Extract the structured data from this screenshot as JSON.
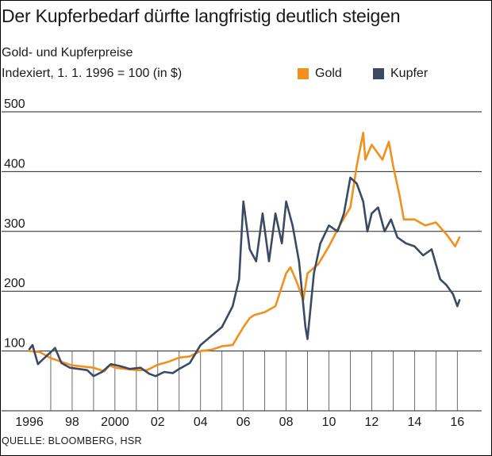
{
  "header": {
    "title": "Der Kupferbedarf dürfte langfristig deutlich steigen",
    "subtitle": "Gold- und Kupferpreise",
    "unit": "Indexiert, 1. 1. 1996 = 100 (in $)"
  },
  "source": "QUELLE: BLOOMBERG, HSR",
  "colors": {
    "gold": "#f2901e",
    "kupfer": "#3b4a63"
  },
  "chart_data": {
    "type": "line",
    "title": "Gold- und Kupferpreise",
    "ylabel": "Indexiert, 1. 1. 1996 = 100 (in $)",
    "xlabel": "",
    "ylim": [
      0,
      500
    ],
    "xlim": [
      1996,
      2016.1
    ],
    "yticks": [
      100,
      200,
      300,
      400,
      500
    ],
    "ytick_labels": [
      "100",
      "200",
      "300",
      "400",
      "500"
    ],
    "xticks": [
      1996,
      1998,
      2000,
      2002,
      2004,
      2006,
      2008,
      2010,
      2012,
      2014,
      2016
    ],
    "xtick_labels": [
      "1996",
      "98",
      "2000",
      "02",
      "04",
      "06",
      "08",
      "10",
      "12",
      "14",
      "16"
    ],
    "grid": true,
    "legend_position": "top-right",
    "series": [
      {
        "name": "Gold",
        "color": "#f2901e",
        "x": [
          1996.0,
          1996.5,
          1997.0,
          1997.5,
          1998.0,
          1998.5,
          1999.0,
          1999.5,
          1999.75,
          2000.0,
          2000.5,
          2001.0,
          2001.5,
          2002.0,
          2002.5,
          2003.0,
          2003.5,
          2004.0,
          2004.5,
          2005.0,
          2005.5,
          2006.0,
          2006.3,
          2006.5,
          2007.0,
          2007.5,
          2008.0,
          2008.2,
          2008.5,
          2008.8,
          2009.0,
          2009.5,
          2010.0,
          2010.5,
          2011.0,
          2011.3,
          2011.6,
          2011.7,
          2012.0,
          2012.5,
          2012.8,
          2013.0,
          2013.3,
          2013.5,
          2014.0,
          2014.5,
          2015.0,
          2015.5,
          2015.9,
          2016.1
        ],
        "y": [
          100,
          98,
          88,
          82,
          76,
          74,
          72,
          66,
          76,
          72,
          70,
          68,
          68,
          77,
          82,
          89,
          91,
          100,
          102,
          108,
          110,
          140,
          155,
          160,
          165,
          175,
          230,
          240,
          215,
          185,
          230,
          245,
          275,
          310,
          340,
          410,
          465,
          420,
          445,
          420,
          450,
          410,
          360,
          320,
          320,
          310,
          315,
          295,
          275,
          290
        ]
      },
      {
        "name": "Kupfer",
        "color": "#3b4a63",
        "x": [
          1996.0,
          1996.15,
          1996.4,
          1996.6,
          1996.9,
          1997.2,
          1997.5,
          1997.9,
          1998.3,
          1998.7,
          1999.0,
          1999.4,
          1999.8,
          2000.2,
          2000.7,
          2001.2,
          2001.6,
          2001.9,
          2002.3,
          2002.7,
          2003.0,
          2003.5,
          2004.0,
          2004.5,
          2005.0,
          2005.5,
          2005.8,
          2006.0,
          2006.3,
          2006.6,
          2006.9,
          2007.2,
          2007.5,
          2007.8,
          2008.0,
          2008.3,
          2008.6,
          2008.9,
          2009.0,
          2009.3,
          2009.6,
          2010.0,
          2010.4,
          2010.7,
          2011.0,
          2011.3,
          2011.6,
          2011.8,
          2012.0,
          2012.3,
          2012.6,
          2012.9,
          2013.2,
          2013.6,
          2014.0,
          2014.4,
          2014.8,
          2015.2,
          2015.5,
          2015.8,
          2016.0,
          2016.1
        ],
        "y": [
          103,
          110,
          78,
          85,
          95,
          105,
          80,
          72,
          70,
          68,
          58,
          65,
          78,
          75,
          70,
          72,
          62,
          58,
          65,
          63,
          70,
          80,
          110,
          125,
          140,
          175,
          220,
          350,
          270,
          250,
          330,
          250,
          330,
          280,
          350,
          310,
          250,
          140,
          120,
          230,
          280,
          310,
          300,
          330,
          390,
          380,
          350,
          300,
          330,
          340,
          300,
          320,
          290,
          280,
          275,
          260,
          270,
          220,
          210,
          195,
          175,
          185
        ]
      }
    ]
  }
}
